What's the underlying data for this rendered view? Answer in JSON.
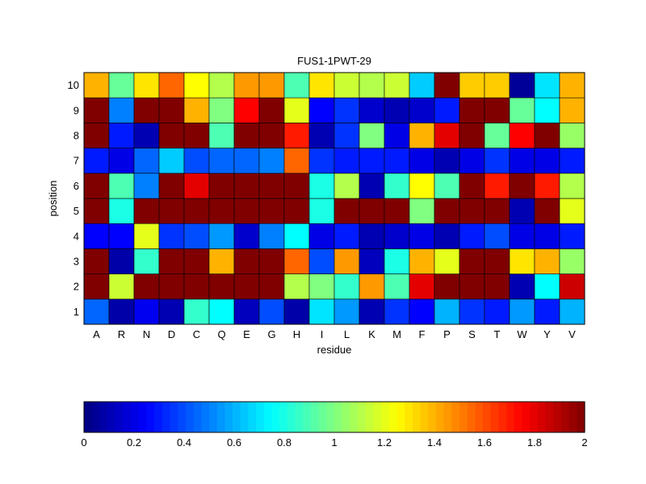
{
  "chart_data": {
    "type": "heatmap",
    "title": "FUS1-1PWT-29",
    "xlabel": "residue",
    "ylabel": "position",
    "x_categories": [
      "A",
      "R",
      "N",
      "D",
      "C",
      "Q",
      "E",
      "G",
      "H",
      "I",
      "L",
      "K",
      "M",
      "F",
      "P",
      "S",
      "T",
      "W",
      "Y",
      "V"
    ],
    "y_categories": [
      "1",
      "2",
      "3",
      "4",
      "5",
      "6",
      "7",
      "8",
      "9",
      "10"
    ],
    "values": [
      [
        0.45,
        0.08,
        0.22,
        0.1,
        0.85,
        0.75,
        0.12,
        0.4,
        0.08,
        0.7,
        0.55,
        0.1,
        0.35,
        0.25,
        0.6,
        0.35,
        0.3,
        0.55,
        0.3,
        0.6
      ],
      [
        2.0,
        1.15,
        2.0,
        2.0,
        2.0,
        2.0,
        2.0,
        2.0,
        1.1,
        1.0,
        0.85,
        1.45,
        0.9,
        1.8,
        2.0,
        2.0,
        2.0,
        0.1,
        0.75,
        1.85
      ],
      [
        2.0,
        0.08,
        0.85,
        2.0,
        2.0,
        1.4,
        2.0,
        2.0,
        1.55,
        0.4,
        1.45,
        0.12,
        0.8,
        1.4,
        1.2,
        2.0,
        2.0,
        1.3,
        1.4,
        1.05
      ],
      [
        0.25,
        0.25,
        1.2,
        0.35,
        0.4,
        0.55,
        0.15,
        0.5,
        0.75,
        0.2,
        0.3,
        0.1,
        0.15,
        0.2,
        0.1,
        0.3,
        0.4,
        0.2,
        0.2,
        0.3
      ],
      [
        2.0,
        0.8,
        2.0,
        2.0,
        2.0,
        2.0,
        2.0,
        2.0,
        2.0,
        0.8,
        2.0,
        2.0,
        2.0,
        1.0,
        2.0,
        2.0,
        2.0,
        0.1,
        2.0,
        1.2
      ],
      [
        2.0,
        0.9,
        0.5,
        2.0,
        1.8,
        2.0,
        2.0,
        2.0,
        2.0,
        0.8,
        1.1,
        0.1,
        0.85,
        1.25,
        0.9,
        2.0,
        1.7,
        2.0,
        1.7,
        1.1
      ],
      [
        0.3,
        0.2,
        0.45,
        0.65,
        0.4,
        0.45,
        0.45,
        0.5,
        1.55,
        0.35,
        0.3,
        0.3,
        0.3,
        0.2,
        0.1,
        0.2,
        0.35,
        0.2,
        0.2,
        0.3
      ],
      [
        2.0,
        0.3,
        0.1,
        2.0,
        2.0,
        0.9,
        2.0,
        2.0,
        1.7,
        0.1,
        0.35,
        1.0,
        0.2,
        1.4,
        1.8,
        2.0,
        0.95,
        1.75,
        2.0,
        1.05
      ],
      [
        2.0,
        0.5,
        2.0,
        2.0,
        1.4,
        1.0,
        1.75,
        2.0,
        1.2,
        0.25,
        0.35,
        0.15,
        0.1,
        0.15,
        0.3,
        2.0,
        2.0,
        0.95,
        0.75,
        1.4
      ],
      [
        1.4,
        0.95,
        1.3,
        1.55,
        1.25,
        1.1,
        1.45,
        1.45,
        0.9,
        1.3,
        1.15,
        1.1,
        1.15,
        0.65,
        2.0,
        1.35,
        1.35,
        0.05,
        0.7,
        1.4
      ]
    ],
    "value_range": [
      0,
      2
    ],
    "colormap": "jet",
    "colorbar": {
      "orientation": "horizontal",
      "placement": "bottom",
      "ticks": [
        "0",
        "0.2",
        "0.4",
        "0.6",
        "0.8",
        "1",
        "1.2",
        "1.4",
        "1.6",
        "1.8",
        "2"
      ]
    },
    "grid": true
  }
}
